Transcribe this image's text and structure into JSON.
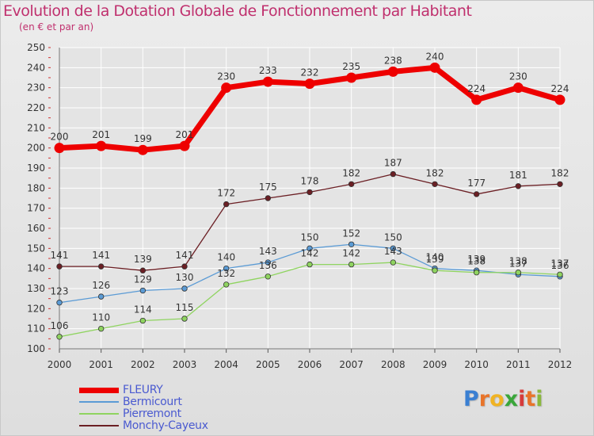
{
  "title": "Evolution de la Dotation Globale de Fonctionnement par Habitant",
  "subtitle": "(en € et par an)",
  "logo": {
    "letters": [
      "P",
      "r",
      "o",
      "x",
      "i",
      "t",
      "i"
    ],
    "colors": [
      "#3a7fd2",
      "#e8742a",
      "#f0b323",
      "#3aa63a",
      "#d63b3b",
      "#e8742a",
      "#8ab83c"
    ]
  },
  "chart_data": {
    "type": "line",
    "x": [
      "2000",
      "2001",
      "2002",
      "2003",
      "2004",
      "2005",
      "2006",
      "2007",
      "2008",
      "2009",
      "2010",
      "2011",
      "2012"
    ],
    "ylim": [
      100,
      250
    ],
    "yticks": [
      100,
      110,
      120,
      130,
      140,
      150,
      160,
      170,
      180,
      190,
      200,
      210,
      220,
      230,
      240,
      250
    ],
    "grid": true,
    "legend_position": "bottom-left",
    "series": [
      {
        "name": "FLEURY",
        "color": "#ee0000",
        "values": [
          200,
          201,
          199,
          201,
          230,
          233,
          232,
          235,
          238,
          240,
          224,
          230,
          224
        ]
      },
      {
        "name": "Bermicourt",
        "color": "#5b9bd5",
        "values": [
          123,
          126,
          129,
          130,
          140,
          143,
          150,
          152,
          150,
          140,
          139,
          137,
          136
        ]
      },
      {
        "name": "Pierremont",
        "color": "#8fd460",
        "values": [
          106,
          110,
          114,
          115,
          132,
          136,
          142,
          142,
          143,
          139,
          138,
          138,
          137
        ]
      },
      {
        "name": "Monchy-Cayeux",
        "color": "#6b1f24",
        "values": [
          141,
          141,
          139,
          141,
          172,
          175,
          178,
          182,
          187,
          182,
          177,
          181,
          182
        ]
      }
    ]
  }
}
